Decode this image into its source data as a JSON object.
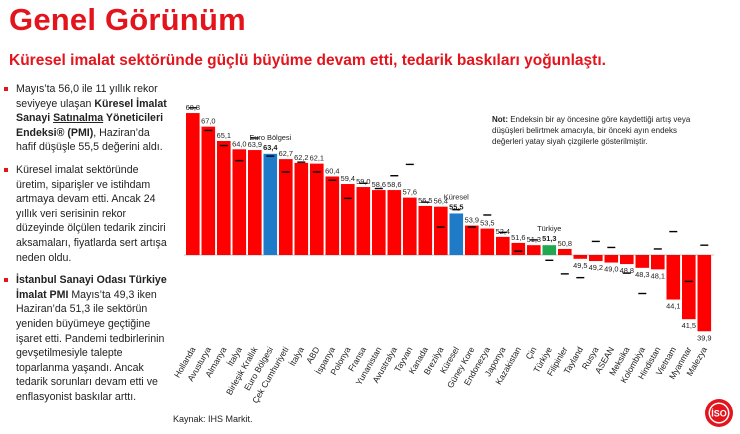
{
  "header": {
    "title": "Genel Görünüm",
    "subtitle": "Küresel imalat sektöründe güçlü büyüme devam etti, tedarik baskıları yoğunlaştı."
  },
  "bullets": [
    {
      "pre": "Mayıs’ta 56,0 ile 11 yıllık rekor seviyeye ulaşan ",
      "bold1": "Küresel İmalat Sanayi ",
      "bold_ul": "Satınalma",
      "bold2": " Yöneticileri Endeksi® (PMI)",
      "post": ", Haziran’da hafif düşüşle 55,5 değerini aldı."
    },
    {
      "text": "Küresel imalat sektöründe üretim, siparişler ve istihdam artmaya devam etti. Ancak 24 yıllık veri serisinin rekor düzeyinde ölçülen tedarik zinciri aksamaları, fiyatlarda sert artışa neden oldu."
    },
    {
      "bold": "İstanbul Sanayi Odası Türkiye İmalat PMI",
      "text": " Mayıs’ta 49,3 iken Haziran’da 51,3 ile sektörün yeniden büyümeye geçtiğine işaret etti. Pandemi tedbirlerinin gevşetilmesiyle talepte toparlanma yaşandı. Ancak tedarik sorunları devam etti ve enflasyonist baskılar arttı."
    }
  ],
  "note": {
    "label": "Not:",
    "text": " Endeksin bir ay öncesine göre kaydettiği artış veya düşüşleri belirtmek amacıyla, bir önceki ayın endeks değerleri yatay siyah çizgilerle gösterilmiştir."
  },
  "source": "Kaynak: IHS Markit.",
  "logo_text": "İSO",
  "colors": {
    "red": "#ff0000",
    "blue": "#1f7ac7",
    "green": "#21a74f",
    "accent": "#e3141c",
    "prev_marker": "#000000"
  },
  "chart_data": {
    "type": "bar",
    "baseline": 50,
    "title": "",
    "xlabel": "",
    "ylabel": "",
    "categories": [
      "Hollanda",
      "Avusturya",
      "Almanya",
      "İtalya",
      "Birleşik Krallık",
      "Euro Bölgesi",
      "Çek Cumhuriyeti",
      "İtalya",
      "ABD",
      "İspanya",
      "Polonya",
      "Fransa",
      "Yunanistan",
      "Avustralya",
      "Tayvan",
      "Kanada",
      "Brezilya",
      "Küresel",
      "Güney Kore",
      "Endonezya",
      "Japonya",
      "Kazakistan",
      "Çin",
      "Türkiye",
      "Filipinler",
      "Tayland",
      "Rusya",
      "ASEAN",
      "Meksika",
      "Kolombiya",
      "Hindistan",
      "Vietnam",
      "Myanmar",
      "Malezya"
    ],
    "value_labels": [
      "68,8",
      "67,0",
      "65,1",
      "64,0",
      "63,9",
      "63,4",
      "62,7",
      "62,2",
      "62,1",
      "60,4",
      "59,4",
      "59,0",
      "58,6",
      "58,6",
      "57,6",
      "56,5",
      "56,4",
      "55,5",
      "53,9",
      "53,5",
      "52,4",
      "51,6",
      "51,3",
      "51,3",
      "50,8",
      "49,5",
      "49,2",
      "49,0",
      "48,8",
      "48,3",
      "48,1",
      "44,1",
      "41,5",
      "39,9"
    ],
    "values": [
      68.8,
      67.0,
      65.1,
      64.0,
      63.9,
      63.4,
      62.7,
      62.2,
      62.1,
      60.4,
      59.4,
      59.0,
      58.6,
      58.6,
      57.6,
      56.5,
      56.4,
      55.5,
      53.9,
      53.5,
      52.4,
      51.6,
      51.3,
      51.3,
      50.8,
      49.5,
      49.2,
      49.0,
      48.8,
      48.3,
      48.1,
      44.1,
      41.5,
      39.9
    ],
    "previous": [
      69.5,
      66.5,
      64.5,
      62.5,
      65.5,
      63.1,
      61.0,
      62.3,
      61.0,
      59.9,
      57.5,
      59.5,
      58.8,
      60.5,
      62.0,
      57.0,
      53.7,
      56.0,
      53.7,
      55.3,
      53.0,
      50.5,
      52.0,
      49.3,
      47.5,
      47.0,
      51.8,
      51.0,
      47.6,
      44.9,
      50.8,
      53.1,
      46.5,
      51.3
    ],
    "highlights": {
      "Euro Bölgesi": "blue",
      "Küresel": "blue",
      "Türkiye": "green"
    },
    "callouts": [
      {
        "category": "Euro Bölgesi",
        "label": "Euro Bölgesi",
        "value": "63,4"
      },
      {
        "category": "Küresel",
        "label": "Küresel",
        "value": "55,5"
      },
      {
        "category": "Türkiye",
        "label": "Türkiye",
        "value": "51,3"
      }
    ]
  }
}
